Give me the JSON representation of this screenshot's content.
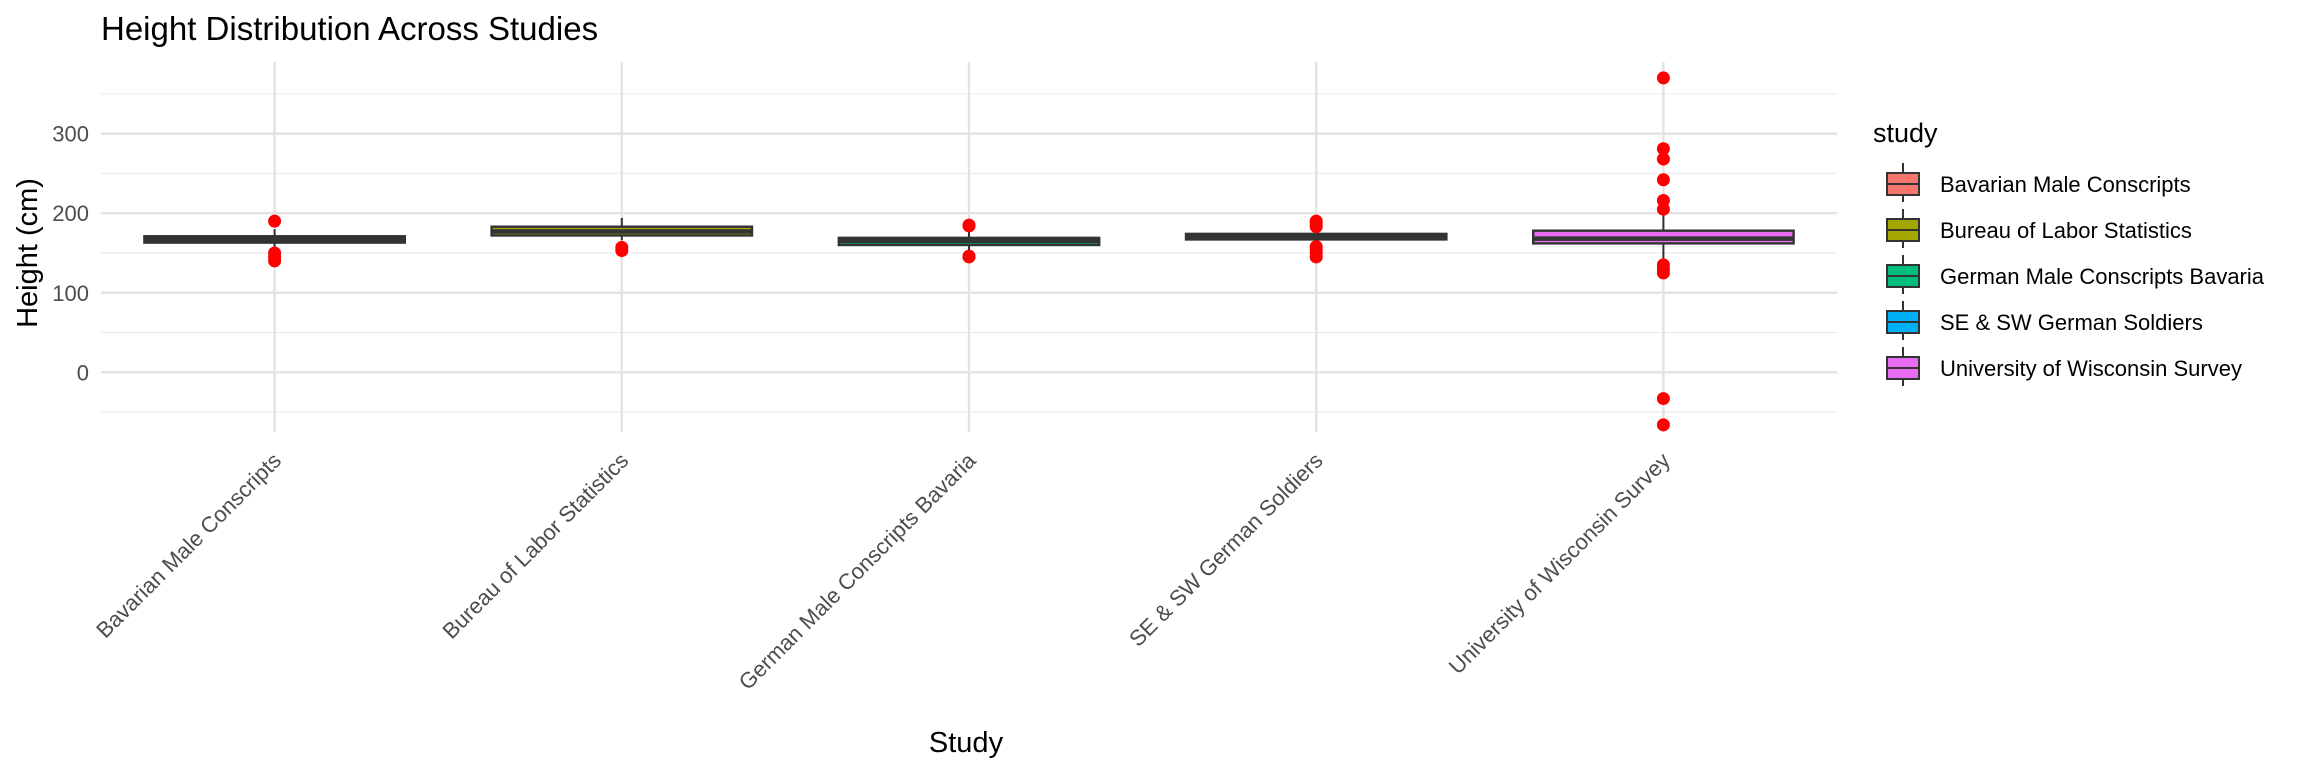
{
  "chart_data": {
    "type": "box",
    "title": "Height Distribution Across Studies",
    "xlabel": "Study",
    "ylabel": "Height (cm)",
    "ylim": [
      -75,
      390
    ],
    "yticks": [
      0,
      100,
      200,
      300
    ],
    "grid": true,
    "legend_title": "study",
    "legend_position": "right",
    "outlier_color": "#ff0000",
    "categories": [
      "Bavarian Male Conscripts",
      "Bureau of Labor Statistics",
      "German Male Conscripts Bavaria",
      "SE & SW German Soldiers",
      "University of Wisconsin Survey"
    ],
    "colors": [
      "#f8766d",
      "#a3a500",
      "#00bf7d",
      "#00b0f6",
      "#e76bf3"
    ],
    "boxes": [
      {
        "min": 157,
        "q1": 163,
        "median": 167,
        "q3": 171,
        "max": 180,
        "outliers": [
          190,
          150,
          145,
          140
        ]
      },
      {
        "min": 166,
        "q1": 172,
        "median": 177,
        "q3": 183,
        "max": 194,
        "outliers": [
          157,
          153
        ]
      },
      {
        "min": 150,
        "q1": 160,
        "median": 165,
        "q3": 169,
        "max": 180,
        "outliers": [
          185,
          184,
          146,
          145
        ]
      },
      {
        "min": 158,
        "q1": 167,
        "median": 171,
        "q3": 174,
        "max": 183,
        "outliers": [
          190,
          187,
          183,
          158,
          154,
          150,
          145
        ]
      },
      {
        "min": 140,
        "q1": 162,
        "median": 168,
        "q3": 178,
        "max": 200,
        "outliers": [
          370,
          281,
          268,
          242,
          216,
          205,
          135,
          130,
          125,
          -33,
          -66
        ]
      }
    ]
  }
}
